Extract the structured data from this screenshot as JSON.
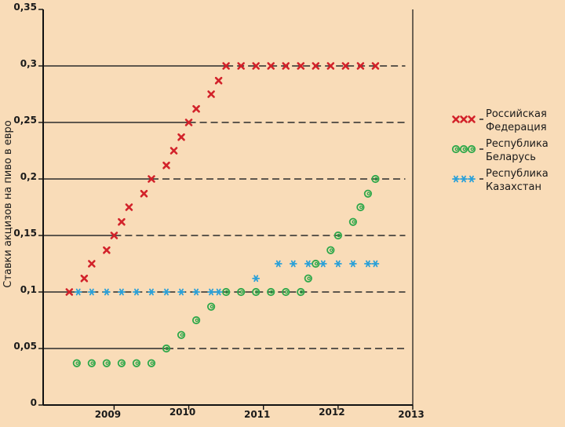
{
  "chart_data": {
    "type": "scatter",
    "title": "",
    "ylabel": "Ставки акцизов на пиво в евро",
    "xlabel": "",
    "xlim": [
      2008.05,
      2013.0
    ],
    "ylim": [
      0,
      0.35
    ],
    "grid": true,
    "legend_position": "right",
    "y_ticks": [
      {
        "value": 0,
        "label": "0"
      },
      {
        "value": 0.05,
        "label": "0,05"
      },
      {
        "value": 0.1,
        "label": "0,1"
      },
      {
        "value": 0.15,
        "label": "0,15"
      },
      {
        "value": 0.2,
        "label": "0,2"
      },
      {
        "value": 0.25,
        "label": "0,25"
      },
      {
        "value": 0.3,
        "label": "0,3"
      },
      {
        "value": 0.35,
        "label": "0,35"
      }
    ],
    "x_ticks": [
      {
        "value": 2009,
        "label": "2009"
      },
      {
        "value": 2010,
        "label": "2010"
      },
      {
        "value": 2011,
        "label": "2011"
      },
      {
        "value": 2012,
        "label": "2012"
      },
      {
        "value": 2013,
        "label": "2013"
      }
    ],
    "solid_lines": [
      {
        "y": 0.3,
        "x_from": 2008.05,
        "x_to": 2010.5
      },
      {
        "y": 0.25,
        "x_from": 2008.05,
        "x_to": 2010.0
      },
      {
        "y": 0.2,
        "x_from": 2008.05,
        "x_to": 2009.5
      },
      {
        "y": 0.15,
        "x_from": 2008.05,
        "x_to": 2009.0
      },
      {
        "y": 0.1,
        "x_from": 2008.05,
        "x_to": 2008.4
      },
      {
        "y": 0.05,
        "x_from": 2008.05,
        "x_to": 2009.7
      }
    ],
    "dashed_lines": [
      {
        "y": 0.3,
        "x_from": 2010.5,
        "x_to": 2012.9
      },
      {
        "y": 0.25,
        "x_from": 2010.0,
        "x_to": 2012.9
      },
      {
        "y": 0.2,
        "x_from": 2009.5,
        "x_to": 2012.9
      },
      {
        "y": 0.15,
        "x_from": 2009.0,
        "x_to": 2012.9
      },
      {
        "y": 0.1,
        "x_from": 2008.4,
        "x_to": 2012.9
      },
      {
        "y": 0.05,
        "x_from": 2009.7,
        "x_to": 2012.9
      }
    ],
    "series": [
      {
        "name": "Российская Федерация",
        "marker": "x",
        "color": "#d2222a",
        "points": [
          [
            2008.4,
            0.1
          ],
          [
            2008.6,
            0.112
          ],
          [
            2008.7,
            0.125
          ],
          [
            2008.9,
            0.137
          ],
          [
            2009.0,
            0.15
          ],
          [
            2009.1,
            0.162
          ],
          [
            2009.2,
            0.175
          ],
          [
            2009.4,
            0.187
          ],
          [
            2009.5,
            0.2
          ],
          [
            2009.7,
            0.212
          ],
          [
            2009.8,
            0.225
          ],
          [
            2009.9,
            0.237
          ],
          [
            2010.0,
            0.25
          ],
          [
            2010.1,
            0.262
          ],
          [
            2010.3,
            0.275
          ],
          [
            2010.4,
            0.287
          ],
          [
            2010.5,
            0.3
          ],
          [
            2010.7,
            0.3
          ],
          [
            2010.9,
            0.3
          ],
          [
            2011.1,
            0.3
          ],
          [
            2011.3,
            0.3
          ],
          [
            2011.5,
            0.3
          ],
          [
            2011.7,
            0.3
          ],
          [
            2011.9,
            0.3
          ],
          [
            2012.1,
            0.3
          ],
          [
            2012.3,
            0.3
          ],
          [
            2012.5,
            0.3
          ]
        ]
      },
      {
        "name": "Республика Беларусь",
        "marker": "@",
        "color": "#2ea84a",
        "points": [
          [
            2008.5,
            0.037
          ],
          [
            2008.7,
            0.037
          ],
          [
            2008.9,
            0.037
          ],
          [
            2009.1,
            0.037
          ],
          [
            2009.3,
            0.037
          ],
          [
            2009.5,
            0.037
          ],
          [
            2009.7,
            0.05
          ],
          [
            2009.9,
            0.062
          ],
          [
            2010.1,
            0.075
          ],
          [
            2010.3,
            0.087
          ],
          [
            2010.5,
            0.1
          ],
          [
            2010.7,
            0.1
          ],
          [
            2010.9,
            0.1
          ],
          [
            2011.1,
            0.1
          ],
          [
            2011.3,
            0.1
          ],
          [
            2011.5,
            0.1
          ],
          [
            2011.6,
            0.112
          ],
          [
            2011.7,
            0.125
          ],
          [
            2011.9,
            0.137
          ],
          [
            2012.0,
            0.15
          ],
          [
            2012.2,
            0.162
          ],
          [
            2012.3,
            0.175
          ],
          [
            2012.4,
            0.187
          ],
          [
            2012.5,
            0.2
          ]
        ]
      },
      {
        "name": "Республика Казахстан",
        "marker": "*",
        "color": "#2aa0d8",
        "points": [
          [
            2008.52,
            0.1
          ],
          [
            2008.7,
            0.1
          ],
          [
            2008.9,
            0.1
          ],
          [
            2009.1,
            0.1
          ],
          [
            2009.3,
            0.1
          ],
          [
            2009.5,
            0.1
          ],
          [
            2009.7,
            0.1
          ],
          [
            2009.9,
            0.1
          ],
          [
            2010.1,
            0.1
          ],
          [
            2010.3,
            0.1
          ],
          [
            2010.4,
            0.1
          ],
          [
            2010.9,
            0.112
          ],
          [
            2011.2,
            0.125
          ],
          [
            2011.4,
            0.125
          ],
          [
            2011.6,
            0.125
          ],
          [
            2011.8,
            0.125
          ],
          [
            2012.0,
            0.125
          ],
          [
            2012.2,
            0.125
          ],
          [
            2012.4,
            0.125
          ],
          [
            2012.5,
            0.125
          ]
        ]
      }
    ],
    "legend": [
      {
        "symbols": "xxx",
        "name": "Российская Федерация",
        "lines": [
          "Российская",
          "Федерация"
        ]
      },
      {
        "symbols": "@@@",
        "name": "Республика Беларусь",
        "lines": [
          "Республика",
          "Беларусь"
        ]
      },
      {
        "symbols": "***",
        "name": "Республика Казахстан",
        "lines": [
          "Республика",
          "Казахстан"
        ]
      }
    ]
  }
}
